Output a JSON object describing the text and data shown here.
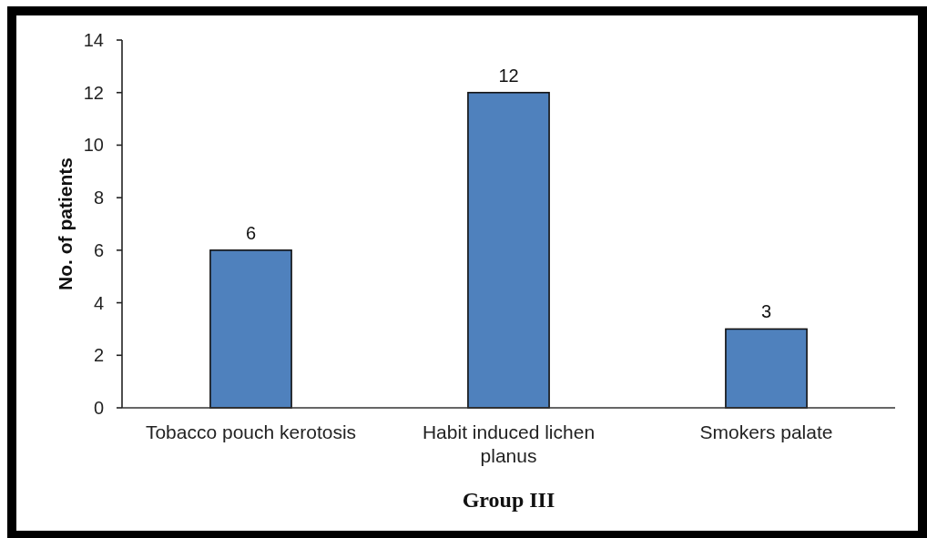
{
  "chart_data": {
    "type": "bar",
    "xlabel": "Group III",
    "ylabel": "No. of patients",
    "categories": [
      "Tobacco pouch kerotosis",
      "Habit induced lichen planus",
      "Smokers palate"
    ],
    "values": [
      6,
      12,
      3
    ],
    "color": "#4f81bd",
    "ylim": [
      0,
      14
    ],
    "yticks": [
      0,
      2,
      4,
      6,
      8,
      10,
      12,
      14
    ],
    "data_labels": true
  }
}
